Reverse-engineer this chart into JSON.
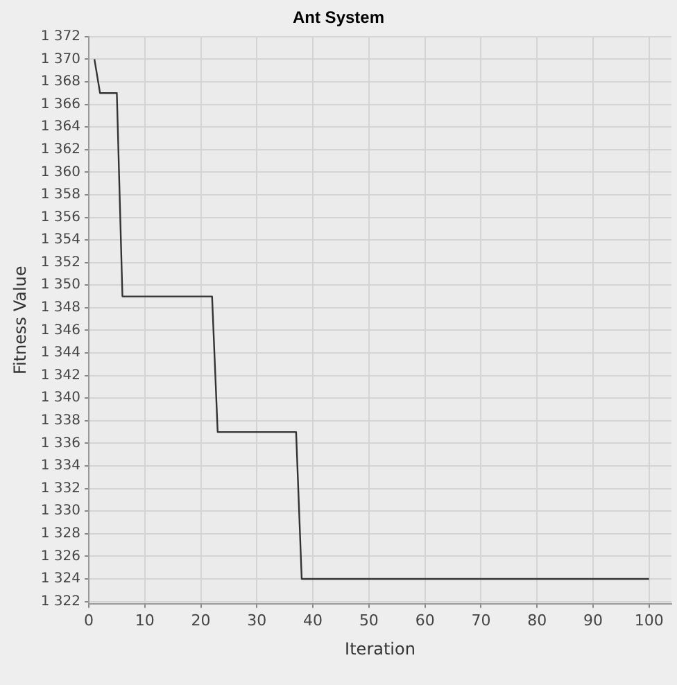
{
  "chart_data": {
    "type": "line",
    "title": "Ant System",
    "xlabel": "Iteration",
    "ylabel": "Fitness Value",
    "x": [
      1,
      2,
      5,
      6,
      22,
      23,
      37,
      38,
      100
    ],
    "series": [
      {
        "color": "#333333",
        "values": [
          1370,
          1367,
          1367,
          1349,
          1349,
          1337,
          1337,
          1324,
          1324
        ]
      }
    ],
    "xlim": [
      0,
      104
    ],
    "xticks": [
      0,
      10,
      20,
      30,
      40,
      50,
      60,
      70,
      80,
      90,
      100
    ],
    "ylim": [
      1321.8,
      1372
    ],
    "yticks": [
      {
        "value": 1322,
        "label": "1 322"
      },
      {
        "value": 1324,
        "label": "1 324"
      },
      {
        "value": 1326,
        "label": "1 326"
      },
      {
        "value": 1328,
        "label": "1 328"
      },
      {
        "value": 1330,
        "label": "1 330"
      },
      {
        "value": 1332,
        "label": "1 332"
      },
      {
        "value": 1334,
        "label": "1 334"
      },
      {
        "value": 1336,
        "label": "1 336"
      },
      {
        "value": 1338,
        "label": "1 338"
      },
      {
        "value": 1340,
        "label": "1 340"
      },
      {
        "value": 1342,
        "label": "1 342"
      },
      {
        "value": 1344,
        "label": "1 344"
      },
      {
        "value": 1346,
        "label": "1 346"
      },
      {
        "value": 1348,
        "label": "1 348"
      },
      {
        "value": 1350,
        "label": "1 350"
      },
      {
        "value": 1352,
        "label": "1 352"
      },
      {
        "value": 1354,
        "label": "1 354"
      },
      {
        "value": 1356,
        "label": "1 356"
      },
      {
        "value": 1358,
        "label": "1 358"
      },
      {
        "value": 1360,
        "label": "1 360"
      },
      {
        "value": 1362,
        "label": "1 362"
      },
      {
        "value": 1364,
        "label": "1 364"
      },
      {
        "value": 1366,
        "label": "1 366"
      },
      {
        "value": 1368,
        "label": "1 368"
      },
      {
        "value": 1370,
        "label": "1 370"
      },
      {
        "value": 1372,
        "label": "1 372"
      }
    ],
    "grid": true,
    "legend": false,
    "marker": "none",
    "line_style": "solid"
  }
}
